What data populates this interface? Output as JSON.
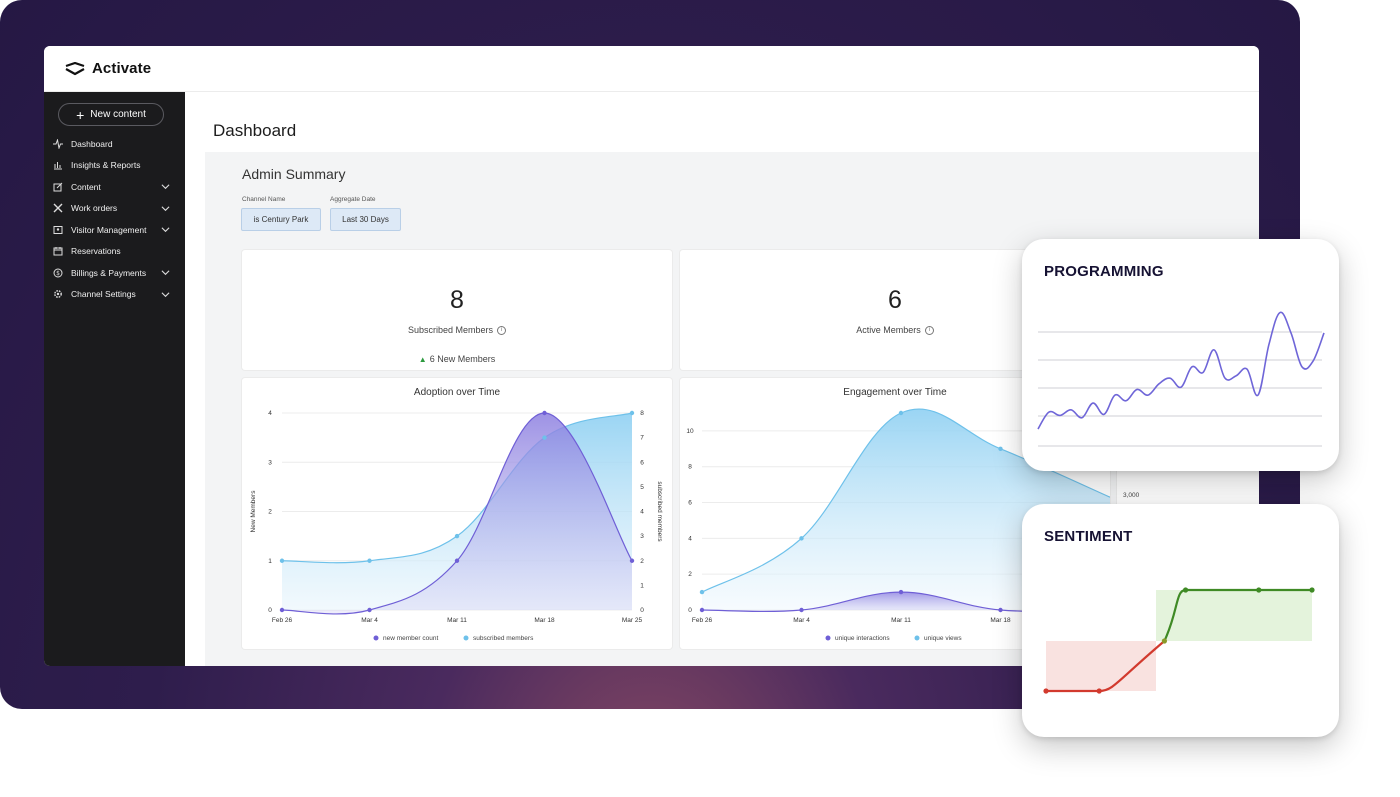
{
  "app": {
    "name": "Activate"
  },
  "sidebar": {
    "new_button": "New content",
    "items": [
      {
        "label": "Dashboard",
        "icon": "activity-icon",
        "has_chevron": false
      },
      {
        "label": "Insights & Reports",
        "icon": "bar-chart-icon",
        "has_chevron": false
      },
      {
        "label": "Content",
        "icon": "edit-icon",
        "has_chevron": true
      },
      {
        "label": "Work orders",
        "icon": "tools-icon",
        "has_chevron": true
      },
      {
        "label": "Visitor Management",
        "icon": "badge-icon",
        "has_chevron": true
      },
      {
        "label": "Reservations",
        "icon": "calendar-icon",
        "has_chevron": false
      },
      {
        "label": "Billings & Payments",
        "icon": "dollar-icon",
        "has_chevron": true
      },
      {
        "label": "Channel Settings",
        "icon": "gear-icon",
        "has_chevron": true
      }
    ]
  },
  "page": {
    "title": "Dashboard"
  },
  "summary": {
    "title": "Admin Summary",
    "filters": [
      {
        "label": "Channel Name",
        "value": "is Century Park"
      },
      {
        "label": "Aggregate Date",
        "value": "Last 30 Days"
      }
    ]
  },
  "stats": [
    {
      "value": "8",
      "label": "Subscribed Members",
      "delta": "6 New Members"
    },
    {
      "value": "6",
      "label": "Active Members"
    }
  ],
  "side_tick": "3,000",
  "chart_data": [
    {
      "type": "area",
      "title": "Adoption over Time",
      "x": [
        "Feb 26",
        "Mar 4",
        "Mar 11",
        "Mar 18",
        "Mar 25"
      ],
      "ylabel": "New Members",
      "y2label": "subscribed members",
      "ylim": [
        0,
        4
      ],
      "y2lim": [
        0,
        8
      ],
      "yticks": [
        0,
        1,
        2,
        3,
        4
      ],
      "y2ticks": [
        0,
        1,
        2,
        3,
        4,
        5,
        6,
        7,
        8
      ],
      "series": [
        {
          "name": "new member count",
          "axis": "left",
          "values": [
            0,
            0,
            1,
            4,
            1
          ],
          "color": "#6f5fd6"
        },
        {
          "name": "subscribed members",
          "axis": "right",
          "values": [
            2,
            2,
            3,
            7,
            8
          ],
          "color": "#6ec1ea"
        }
      ]
    },
    {
      "type": "area",
      "title": "Engagement over Time",
      "x": [
        "Feb 26",
        "Mar 4",
        "Mar 11",
        "Mar 18"
      ],
      "ylim": [
        0,
        11
      ],
      "yticks": [
        0,
        2,
        4,
        6,
        8,
        10
      ],
      "series": [
        {
          "name": "unique interactions",
          "values": [
            0,
            0,
            1,
            0
          ],
          "color": "#6f5fd6"
        },
        {
          "name": "unique views",
          "values": [
            1,
            4,
            11,
            9
          ],
          "color": "#6ec1ea"
        }
      ]
    },
    {
      "type": "line",
      "title": "PROGRAMMING",
      "x": [
        0,
        1,
        2,
        3,
        4,
        5,
        6,
        7,
        8,
        9,
        10,
        11,
        12,
        13,
        14,
        15,
        16,
        17,
        18,
        19,
        20,
        21,
        22,
        23,
        24,
        25,
        26
      ],
      "values": [
        15,
        30,
        27,
        32,
        25,
        38,
        28,
        45,
        40,
        50,
        45,
        55,
        60,
        52,
        70,
        65,
        85,
        60,
        62,
        68,
        45,
        90,
        118,
        100,
        70,
        75,
        100
      ],
      "ylim": [
        0,
        130
      ],
      "grid": true,
      "color": "#6f66d8"
    },
    {
      "type": "line",
      "title": "SENTIMENT",
      "x": [
        0,
        1,
        2,
        3,
        4,
        5
      ],
      "values": [
        -1,
        -1,
        0,
        1,
        1,
        1
      ],
      "ylim": [
        -1.1,
        1.1
      ],
      "threshold": 0,
      "colors": {
        "negative": "#d23a2e",
        "positive": "#3f8a25",
        "negative_fill": "#f9e2e0",
        "positive_fill": "#e4f3dc"
      }
    }
  ]
}
